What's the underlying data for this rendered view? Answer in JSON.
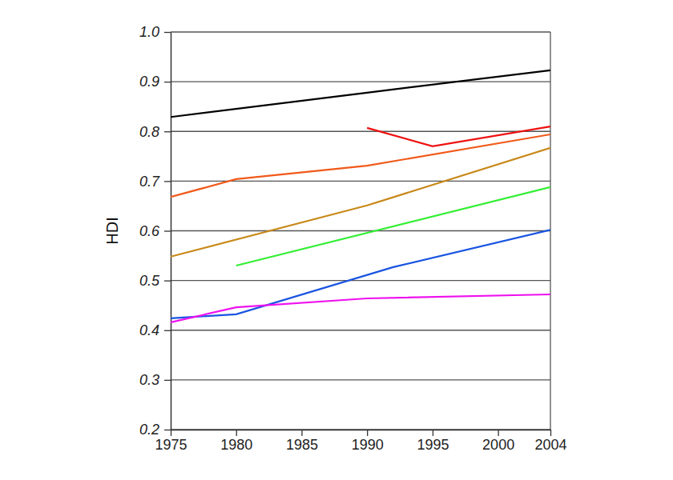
{
  "chart_data": {
    "type": "line",
    "ylabel": "HDI",
    "xlim": [
      1975,
      2004
    ],
    "xticks": [
      1975,
      1980,
      1985,
      1990,
      1995,
      2000,
      2004
    ],
    "ylim": [
      0.2,
      1.0
    ],
    "yticks": [
      0.2,
      0.3,
      0.4,
      0.5,
      0.6,
      0.7,
      0.8,
      0.9,
      {
        "value": 1.0,
        "label": "1.0"
      }
    ],
    "grid": true,
    "series": [
      {
        "color": "#000000",
        "x": [
          1975,
          1990,
          2004
        ],
        "values": [
          0.829,
          0.878,
          0.923
        ]
      },
      {
        "color": "#ee1111",
        "x": [
          1990,
          1995,
          2004
        ],
        "values": [
          0.807,
          0.77,
          0.81
        ]
      },
      {
        "color": "#f05a1a",
        "x": [
          1975,
          1980,
          1990,
          2004
        ],
        "values": [
          0.668,
          0.704,
          0.731,
          0.794
        ]
      },
      {
        "color": "#c8891a",
        "x": [
          1975,
          1990,
          2004
        ],
        "values": [
          0.548,
          0.651,
          0.767
        ]
      },
      {
        "color": "#33ee33",
        "x": [
          1980,
          2004
        ],
        "values": [
          0.53,
          0.688
        ]
      },
      {
        "color": "#1a55e0",
        "x": [
          1975,
          1980,
          1992,
          2004
        ],
        "values": [
          0.424,
          0.432,
          0.527,
          0.602
        ]
      },
      {
        "color": "#ee11ee",
        "x": [
          1975,
          1980,
          1990,
          2004
        ],
        "values": [
          0.416,
          0.446,
          0.464,
          0.472
        ]
      }
    ]
  }
}
